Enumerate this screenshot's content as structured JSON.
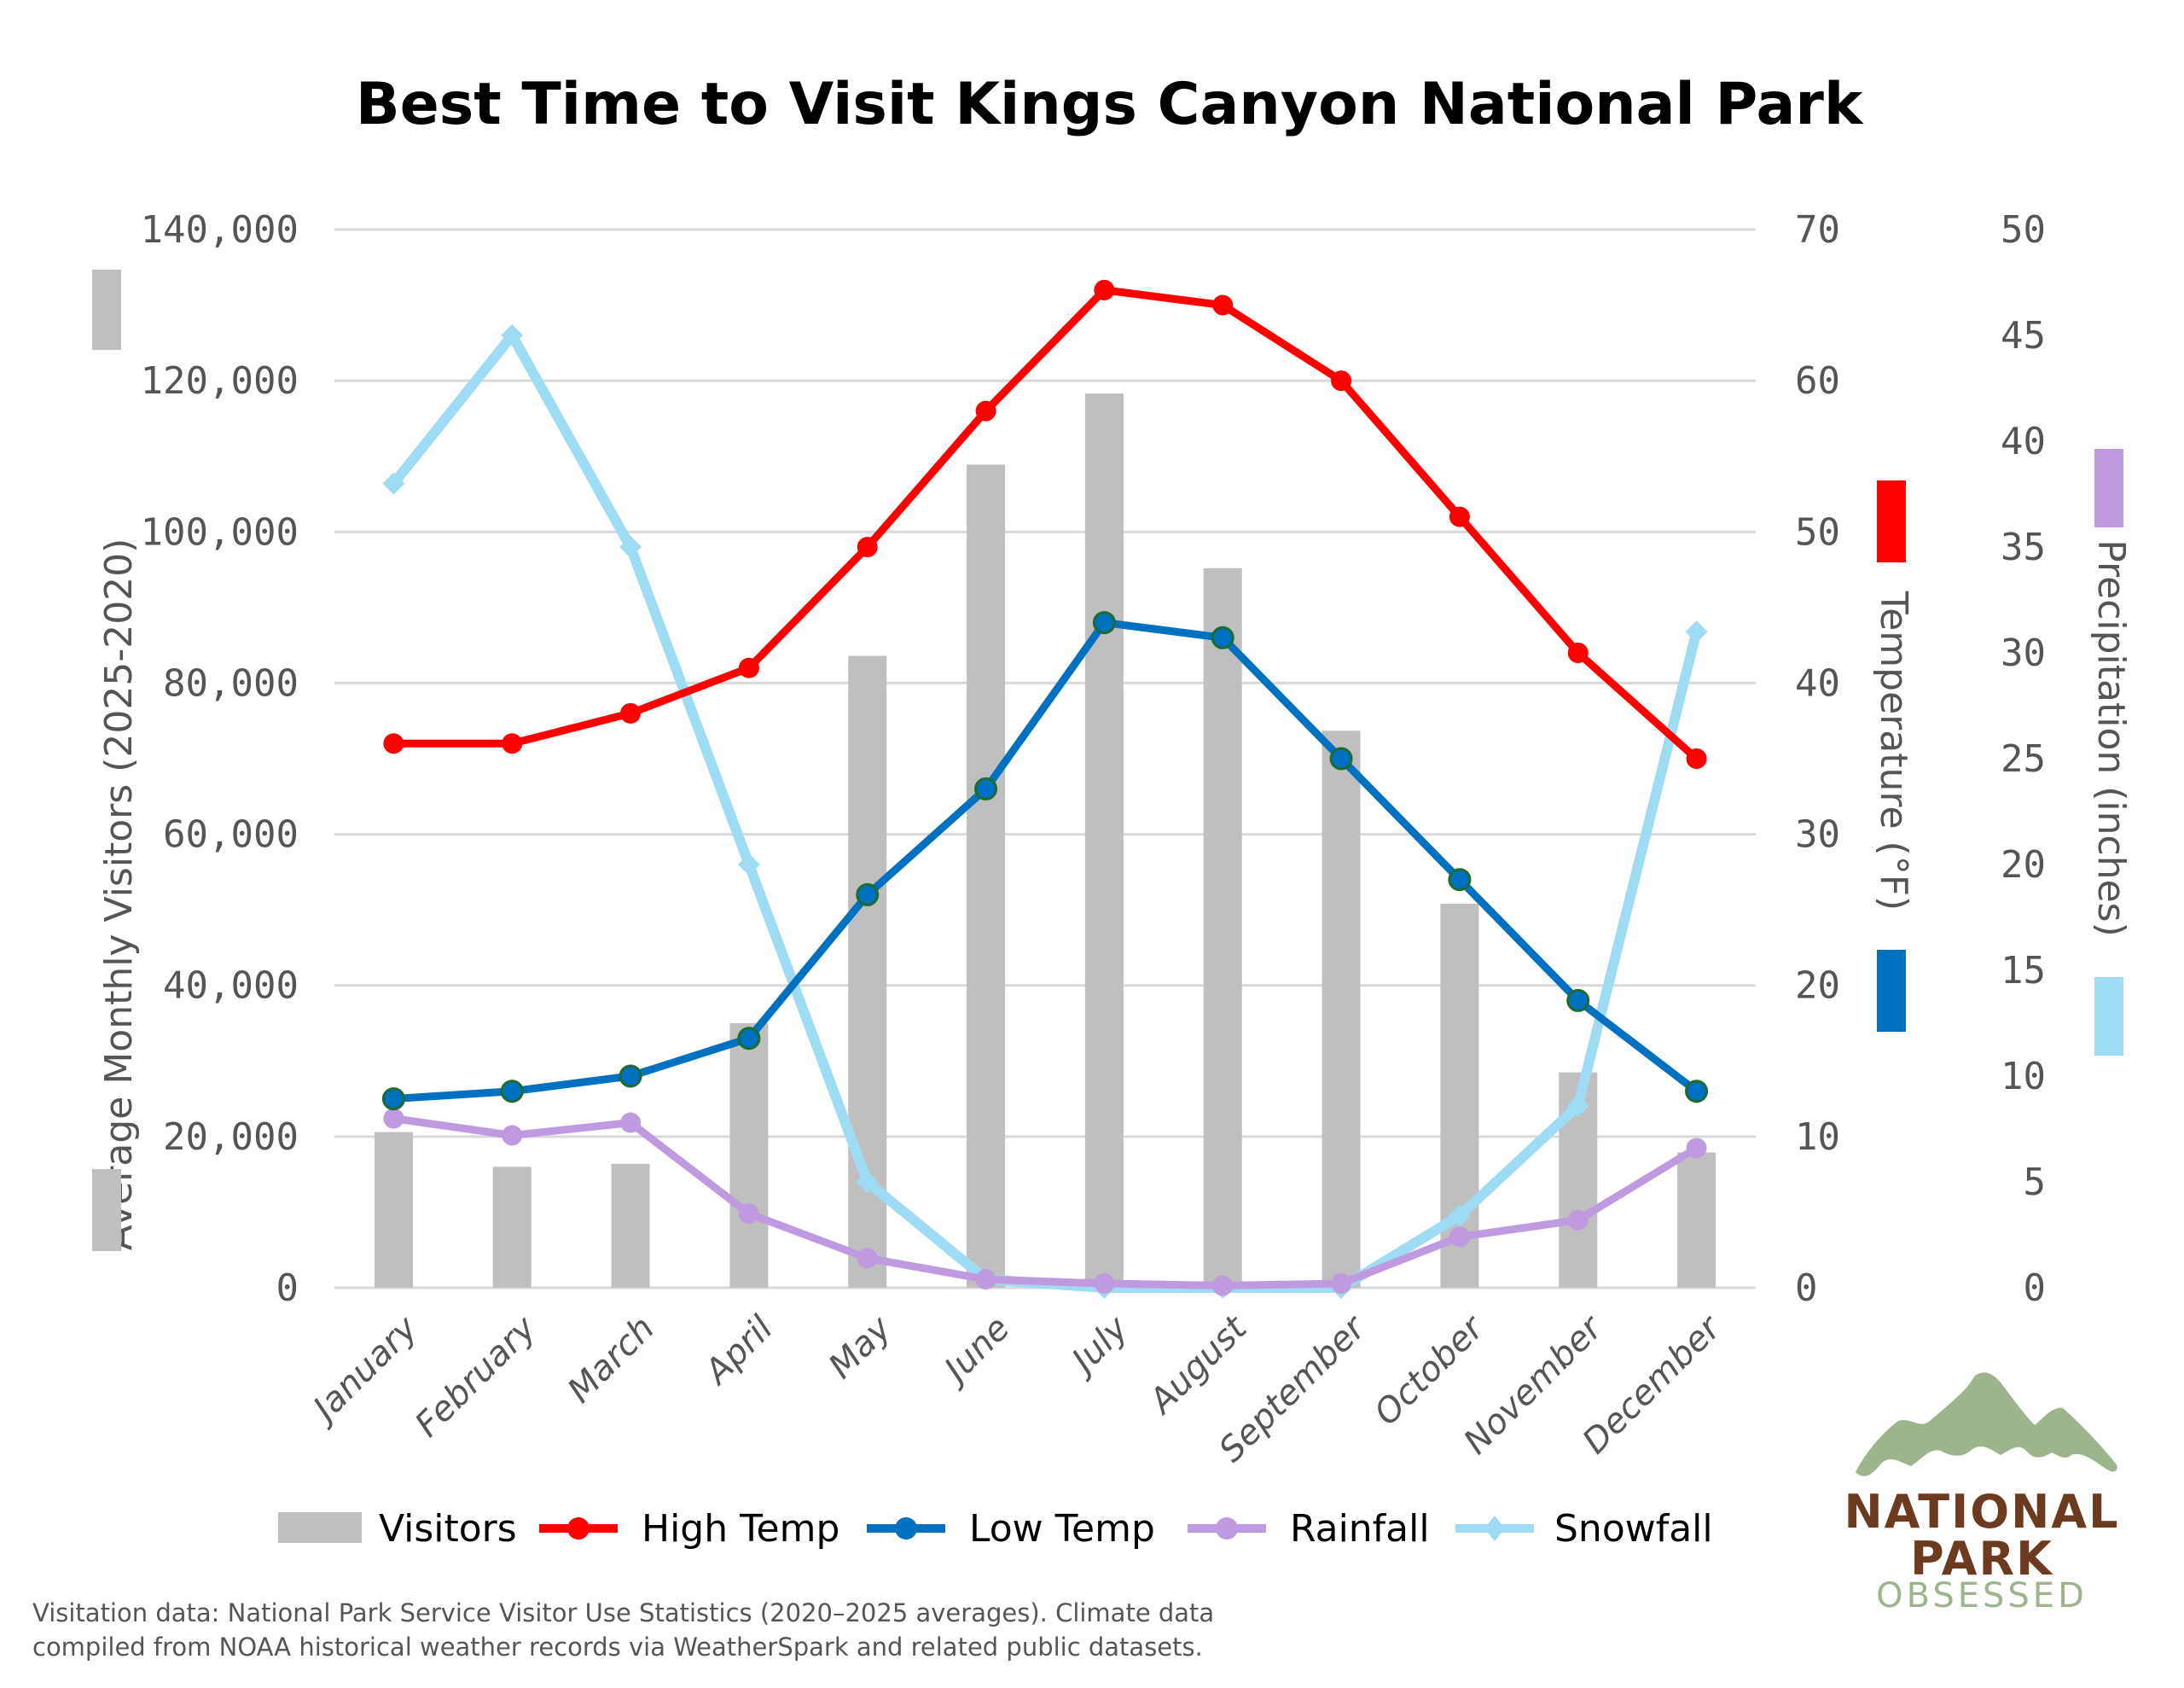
{
  "title": "Best Time to Visit Kings Canyon National Park",
  "axes": {
    "left_title": "Average Monthly Visitors (2025-2020)",
    "left_ticks": [
      "0",
      "20,000",
      "40,000",
      "60,000",
      "80,000",
      "100,000",
      "120,000",
      "140,000"
    ],
    "temp_title": "Temperature (°F)",
    "temp_ticks": [
      "0",
      "10",
      "20",
      "30",
      "40",
      "50",
      "60",
      "70"
    ],
    "precip_title": "Precipitation (inches)",
    "precip_ticks": [
      "0",
      "5",
      "10",
      "15",
      "20",
      "25",
      "30",
      "35",
      "40",
      "45",
      "50"
    ]
  },
  "legend": {
    "visitors": "Visitors",
    "high_temp": "High Temp",
    "low_temp": "Low Temp",
    "rainfall": "Rainfall",
    "snowfall": "Snowfall"
  },
  "colors": {
    "visitors": "#bfbfbf",
    "high_temp": "#ff0000",
    "low_temp": "#0070c0",
    "low_temp_marker_border": "#1e6b2e",
    "rainfall": "#c09ae0",
    "snowfall": "#9edcf5",
    "grid": "#d9d9d9",
    "tick_text": "#555555",
    "logo_green": "#9db58c",
    "logo_brown": "#6b3a1f"
  },
  "footer": {
    "line1": "Visitation data: National Park Service Visitor Use Statistics (2020–2025 averages). Climate data",
    "line2": "compiled from NOAA historical weather records via WeatherSpark and related public datasets."
  },
  "logo": {
    "line1": "NATIONAL",
    "line2": "PARK",
    "line3": "OBSESSED"
  },
  "chart_data": {
    "type": "bar",
    "title": "Best Time to Visit Kings Canyon National Park",
    "categories": [
      "January",
      "February",
      "March",
      "April",
      "May",
      "June",
      "July",
      "August",
      "September",
      "October",
      "November",
      "December"
    ],
    "series": [
      {
        "name": "Visitors",
        "type": "bar",
        "axis": "left",
        "values": [
          20600,
          16000,
          16400,
          35000,
          83600,
          108900,
          118300,
          95200,
          73700,
          50800,
          28500,
          17900
        ]
      },
      {
        "name": "High Temp",
        "type": "line",
        "axis": "temperature",
        "values": [
          36,
          36,
          38,
          41,
          49,
          58,
          66,
          65,
          60,
          51,
          42,
          35
        ]
      },
      {
        "name": "Low Temp",
        "type": "line",
        "axis": "temperature",
        "values": [
          12.5,
          13,
          14,
          16.5,
          26,
          33,
          44,
          43,
          35,
          27,
          19,
          13
        ]
      },
      {
        "name": "Rainfall",
        "type": "line",
        "axis": "precipitation",
        "values": [
          8.0,
          7.2,
          7.8,
          3.5,
          1.4,
          0.4,
          0.2,
          0.1,
          0.2,
          2.4,
          3.2,
          6.6
        ]
      },
      {
        "name": "Snowfall",
        "type": "line",
        "axis": "precipitation",
        "values": [
          38,
          45,
          35,
          20,
          5,
          0.4,
          0,
          0,
          0,
          3.4,
          8.6,
          31
        ]
      }
    ],
    "xlabel": "",
    "ylabel": "Average Monthly Visitors (2025-2020)",
    "ylim": [
      0,
      140000
    ],
    "y2label": "Temperature (°F)",
    "y2lim": [
      0,
      70
    ],
    "y3label": "Precipitation (inches)",
    "y3lim": [
      0,
      50
    ],
    "grid": true,
    "legend_position": "bottom"
  }
}
